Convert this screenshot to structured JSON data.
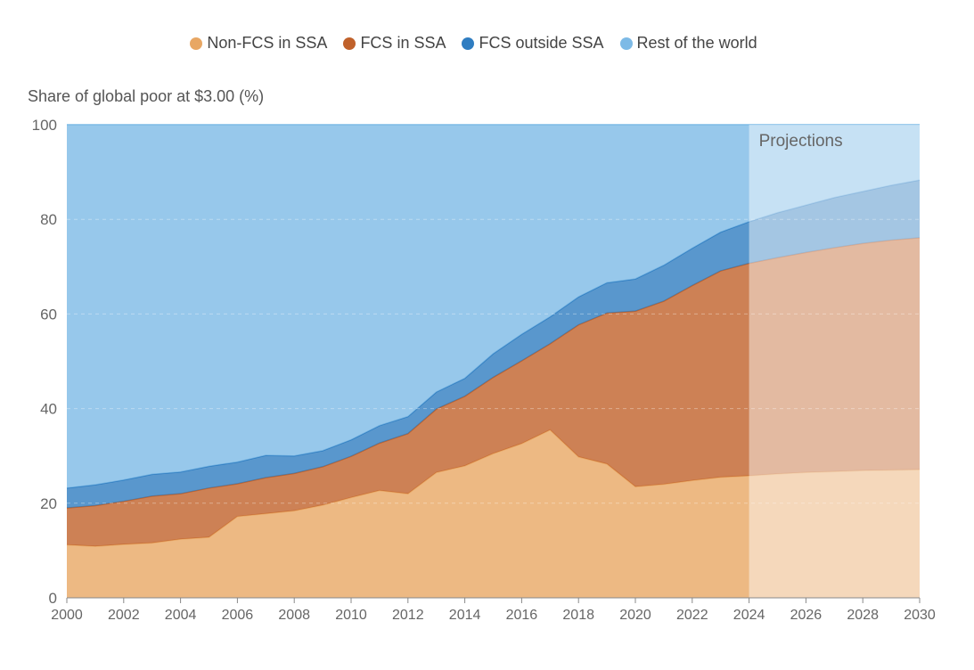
{
  "chart_data": {
    "type": "area",
    "stacked": true,
    "ylabel": "Share of global poor at $3.00 (%)",
    "ylim": [
      0,
      100
    ],
    "xlim": [
      2000,
      2030
    ],
    "y_ticks": [
      0,
      20,
      40,
      60,
      80,
      100
    ],
    "x_ticks": [
      2000,
      2002,
      2004,
      2006,
      2008,
      2010,
      2012,
      2014,
      2016,
      2018,
      2020,
      2022,
      2024,
      2026,
      2028,
      2030
    ],
    "grid": true,
    "legend_position": "top",
    "projection_start": 2024,
    "projection_label": "Projections",
    "x": [
      2000,
      2001,
      2002,
      2003,
      2004,
      2005,
      2006,
      2007,
      2008,
      2009,
      2010,
      2011,
      2012,
      2013,
      2014,
      2015,
      2016,
      2017,
      2018,
      2019,
      2020,
      2021,
      2022,
      2023,
      2024,
      2025,
      2026,
      2027,
      2028,
      2029,
      2030
    ],
    "series": [
      {
        "name": "Non-FCS in SSA",
        "color": "#E8A764",
        "values": [
          11.2,
          10.9,
          11.3,
          11.6,
          12.4,
          12.8,
          17.2,
          17.8,
          18.4,
          19.6,
          21.2,
          22.7,
          22.0,
          26.5,
          27.9,
          30.5,
          32.6,
          35.5,
          29.8,
          28.3,
          23.5,
          24.0,
          24.8,
          25.5,
          25.8,
          26.2,
          26.5,
          26.7,
          26.9,
          27.0,
          27.1
        ]
      },
      {
        "name": "FCS in SSA",
        "color": "#C0612B",
        "values": [
          7.8,
          8.6,
          9.1,
          9.9,
          9.6,
          10.4,
          6.9,
          7.6,
          7.9,
          8.1,
          8.7,
          10.0,
          12.7,
          13.4,
          14.7,
          16.1,
          17.5,
          18.2,
          27.9,
          31.9,
          37.1,
          38.7,
          41.2,
          43.6,
          44.9,
          45.7,
          46.5,
          47.3,
          48.0,
          48.6,
          49.0
        ]
      },
      {
        "name": "FCS outside SSA",
        "color": "#2F7DC1",
        "values": [
          4.2,
          4.4,
          4.5,
          4.6,
          4.6,
          4.6,
          4.6,
          4.7,
          3.7,
          3.4,
          3.5,
          3.7,
          3.6,
          3.6,
          3.8,
          5.0,
          5.6,
          5.7,
          5.9,
          6.4,
          6.8,
          7.6,
          7.9,
          8.2,
          8.8,
          9.5,
          10.0,
          10.6,
          11.0,
          11.6,
          12.2
        ]
      },
      {
        "name": "Rest of the world",
        "color": "#7DBAE6",
        "values": [
          76.8,
          76.1,
          75.1,
          73.9,
          73.4,
          72.2,
          71.3,
          69.9,
          70.0,
          68.9,
          66.6,
          63.6,
          61.7,
          56.5,
          53.6,
          48.4,
          44.3,
          40.6,
          36.4,
          33.4,
          32.6,
          29.7,
          26.1,
          22.7,
          20.5,
          18.6,
          17.0,
          15.4,
          14.1,
          12.8,
          11.7
        ]
      }
    ]
  }
}
